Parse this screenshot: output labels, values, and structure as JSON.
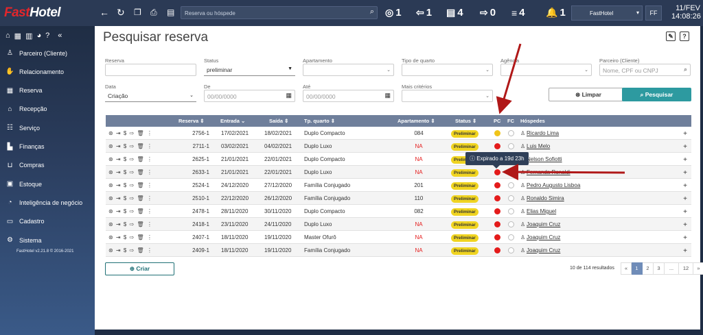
{
  "brand": {
    "part1": "Fast",
    "part2": "Hotel"
  },
  "topbar": {
    "search_placeholder": "Reserva ou hóspede",
    "stats": [
      {
        "icon": "target-icon",
        "glyph": "◎",
        "count": "1"
      },
      {
        "icon": "checkin-icon",
        "glyph": "⇦",
        "count": "1"
      },
      {
        "icon": "bed-icon",
        "glyph": "▤",
        "count": "4"
      },
      {
        "icon": "checkout-icon",
        "glyph": "⇨",
        "count": "0"
      },
      {
        "icon": "list-icon",
        "glyph": "≡",
        "count": "4"
      },
      {
        "icon": "bell-icon",
        "glyph": "🔔",
        "count": "1"
      }
    ],
    "hotel": "FastHotel",
    "user_initials": "FF",
    "date": "11/FEV",
    "time": "14:08:26"
  },
  "sidebar": {
    "items": [
      {
        "label": "Parceiro (Cliente)",
        "icon": "person-icon",
        "glyph": "♙"
      },
      {
        "label": "Relacionamento",
        "icon": "handshake-icon",
        "glyph": "✋"
      },
      {
        "label": "Reserva",
        "icon": "calendar-icon",
        "glyph": "▦"
      },
      {
        "label": "Recepção",
        "icon": "bell-desk-icon",
        "glyph": "⌂"
      },
      {
        "label": "Serviço",
        "icon": "service-icon",
        "glyph": "☷"
      },
      {
        "label": "Finanças",
        "icon": "chart-icon",
        "glyph": "▙"
      },
      {
        "label": "Compras",
        "icon": "cart-icon",
        "glyph": "⊔"
      },
      {
        "label": "Estoque",
        "icon": "box-icon",
        "glyph": "▣"
      },
      {
        "label": "Inteligência de negócio",
        "icon": "bi-icon",
        "glyph": "◔"
      },
      {
        "label": "Cadastro",
        "icon": "card-icon",
        "glyph": "▭"
      },
      {
        "label": "Sistema",
        "icon": "gear-icon",
        "glyph": "⚙"
      }
    ],
    "version": "FastHotel v2.21.8 © 2016-2021"
  },
  "page": {
    "title": "Pesquisar reserva"
  },
  "filters": {
    "reserva": {
      "label": "Reserva",
      "value": ""
    },
    "status": {
      "label": "Status",
      "value": "preliminar"
    },
    "apartamento": {
      "label": "Apartamento",
      "value": ""
    },
    "tipo_quarto": {
      "label": "Tipo de quarto",
      "value": ""
    },
    "agencia": {
      "label": "Agência",
      "value": ""
    },
    "parceiro": {
      "label": "Parceiro (Cliente)",
      "placeholder": "Nome, CPF ou CNPJ"
    },
    "data": {
      "label": "Data",
      "value": "Criação"
    },
    "de": {
      "label": "De",
      "placeholder": "00/00/0000"
    },
    "ate": {
      "label": "Até",
      "placeholder": "00/00/0000"
    },
    "mais": {
      "label": "Mais critérios",
      "value": ""
    },
    "limpar": "Limpar",
    "pesquisar": "Pesquisar"
  },
  "table": {
    "headers": {
      "reserva": "Reserva ⇕",
      "entrada": "Entrada ⌄",
      "saida": "Saída ⇕",
      "tipo": "Tp. quarto ⇕",
      "apto": "Apartamento ⇕",
      "status": "Status ⇕",
      "pc": "PC",
      "fc": "FC",
      "hospedes": "Hóspedes"
    },
    "rows": [
      {
        "reserva": "2756-1",
        "entrada": "17/02/2021",
        "saida": "18/02/2021",
        "tipo": "Duplo Compacto",
        "apto": "084",
        "status": "Preliminar",
        "pc": "yellow",
        "hospede": "Ricardo Lima"
      },
      {
        "reserva": "2711-1",
        "entrada": "03/02/2021",
        "saida": "04/02/2021",
        "tipo": "Duplo Luxo",
        "apto": "NA",
        "status": "Preliminar",
        "pc": "red",
        "hospede": "Luis Melo"
      },
      {
        "reserva": "2625-1",
        "entrada": "21/01/2021",
        "saida": "22/01/2021",
        "tipo": "Duplo Compacto",
        "apto": "NA",
        "status": "Preliminar",
        "pc": "red",
        "hospede": "Nelson Sofiotti"
      },
      {
        "reserva": "2633-1",
        "entrada": "21/01/2021",
        "saida": "22/01/2021",
        "tipo": "Duplo Luxo",
        "apto": "NA",
        "status": "Preliminar",
        "pc": "red",
        "hospede": "Fernanda Ronaldi"
      },
      {
        "reserva": "2524-1",
        "entrada": "24/12/2020",
        "saida": "27/12/2020",
        "tipo": "Família Conjugado",
        "apto": "201",
        "status": "Preliminar",
        "pc": "red",
        "hospede": "Pedro Augusto Lisboa"
      },
      {
        "reserva": "2510-1",
        "entrada": "22/12/2020",
        "saida": "26/12/2020",
        "tipo": "Família Conjugado",
        "apto": "110",
        "status": "Preliminar",
        "pc": "red",
        "hospede": "Ronaldo Simira"
      },
      {
        "reserva": "2478-1",
        "entrada": "28/11/2020",
        "saida": "30/11/2020",
        "tipo": "Duplo Compacto",
        "apto": "082",
        "status": "Preliminar",
        "pc": "red",
        "hospede": "Elias Miguel"
      },
      {
        "reserva": "2418-1",
        "entrada": "23/11/2020",
        "saida": "24/11/2020",
        "tipo": "Duplo Luxo",
        "apto": "NA",
        "status": "Preliminar",
        "pc": "red",
        "hospede": "Joaquim Cruz"
      },
      {
        "reserva": "2407-1",
        "entrada": "18/11/2020",
        "saida": "19/11/2020",
        "tipo": "Master Ofurô",
        "apto": "NA",
        "status": "Preliminar",
        "pc": "red",
        "hospede": "Joaquim Cruz"
      },
      {
        "reserva": "2409-1",
        "entrada": "18/11/2020",
        "saida": "19/11/2020",
        "tipo": "Família Conjugado",
        "apto": "NA",
        "status": "Preliminar",
        "pc": "red",
        "hospede": "Joaquim Cruz"
      }
    ],
    "tooltip": "Expirado a 19d 23h"
  },
  "footer": {
    "criar": "Criar",
    "results": "10 de 114 resultados",
    "pages": [
      "«",
      "1",
      "2",
      "3",
      "...",
      "12",
      "»"
    ],
    "active_page": "1"
  },
  "colors": {
    "accent": "#2d9aa0",
    "header": "#6f7f9b",
    "badge": "#f0d421",
    "red": "#e41b1b",
    "annotation": "#b01818"
  }
}
